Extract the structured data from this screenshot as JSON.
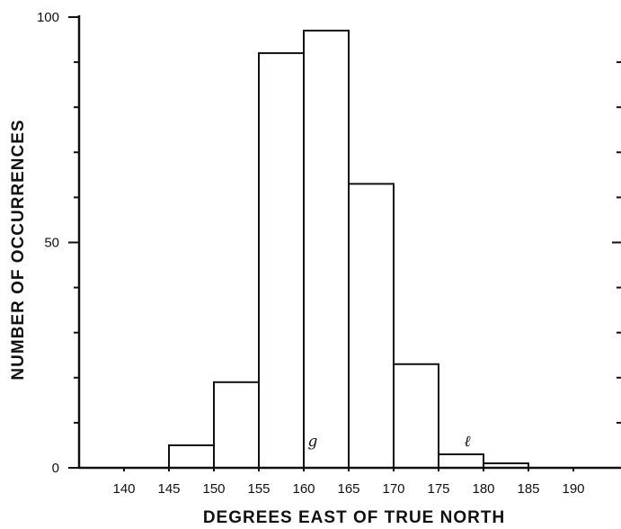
{
  "chart_data": {
    "type": "bar",
    "title": "",
    "xlabel": "DEGREES EAST OF TRUE NORTH",
    "ylabel": "NUMBER OF OCCURRENCES",
    "xlim": [
      135,
      195
    ],
    "ylim": [
      0,
      100
    ],
    "x_ticks": [
      "140",
      "145",
      "150",
      "155",
      "160",
      "165",
      "170",
      "175",
      "180",
      "185",
      "190"
    ],
    "y_ticks": [
      "0",
      "50",
      "100"
    ],
    "bins": [
      {
        "from": 145,
        "to": 150,
        "value": 5
      },
      {
        "from": 150,
        "to": 155,
        "value": 19
      },
      {
        "from": 155,
        "to": 160,
        "value": 92
      },
      {
        "from": 160,
        "to": 165,
        "value": 97
      },
      {
        "from": 165,
        "to": 170,
        "value": 63
      },
      {
        "from": 170,
        "to": 175,
        "value": 23
      },
      {
        "from": 175,
        "to": 180,
        "value": 3
      },
      {
        "from": 180,
        "to": 185,
        "value": 1
      }
    ],
    "annotations": [
      {
        "text": "g",
        "x": 161
      },
      {
        "text": "ℓ",
        "x": 178.2
      }
    ],
    "grid": false
  }
}
